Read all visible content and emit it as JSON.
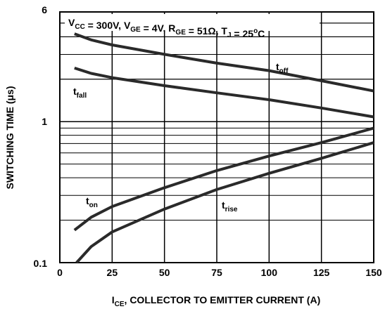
{
  "chart_data": {
    "type": "line",
    "title": "",
    "conditions": {
      "text": "V",
      "parts": [
        {
          "main": "V",
          "sub": "CC"
        },
        {
          "main": " = 300V, V",
          "sub": "GE"
        },
        {
          "main": " = 4V, R",
          "sub": "GE"
        },
        {
          "main": " = 51Ω, T",
          "sub": "J"
        },
        {
          "main": " = 25",
          "sup": "o",
          "after": "C"
        }
      ]
    },
    "xlabel": {
      "main": "I",
      "sub": "CE",
      "after": ", COLLECTOR TO EMITTER CURRENT (A)"
    },
    "ylabel": "SWITCHING TIME (μs)",
    "x_ticks": [
      "0",
      "25",
      "50",
      "75",
      "100",
      "125",
      "150"
    ],
    "y_tick_labels": [
      {
        "value": 0.1,
        "label": "0.1"
      },
      {
        "value": 1,
        "label": "1"
      },
      {
        "value": 6,
        "label": "6"
      }
    ],
    "xlim": [
      0,
      150
    ],
    "ylim": [
      0.1,
      6
    ],
    "y_scale": "log",
    "grid": true,
    "series": [
      {
        "name": "t_off",
        "label_main": "t",
        "label_sub": "off",
        "x": [
          7,
          15,
          25,
          50,
          75,
          100,
          125,
          150
        ],
        "y": [
          4.2,
          3.8,
          3.5,
          3.0,
          2.6,
          2.3,
          1.95,
          1.65
        ]
      },
      {
        "name": "t_fall",
        "label_main": "t",
        "label_sub": "fall",
        "x": [
          7,
          15,
          25,
          50,
          75,
          100,
          125,
          150
        ],
        "y": [
          2.4,
          2.2,
          2.05,
          1.8,
          1.6,
          1.43,
          1.25,
          1.08
        ]
      },
      {
        "name": "t_on",
        "label_main": "t",
        "label_sub": "on",
        "x": [
          7,
          15,
          25,
          50,
          75,
          100,
          125,
          150
        ],
        "y": [
          0.17,
          0.21,
          0.25,
          0.34,
          0.45,
          0.57,
          0.71,
          0.9
        ]
      },
      {
        "name": "t_rise",
        "label_main": "t",
        "label_sub": "rise",
        "x": [
          8,
          15,
          25,
          50,
          75,
          100,
          125,
          150
        ],
        "y": [
          0.1,
          0.13,
          0.165,
          0.24,
          0.33,
          0.43,
          0.55,
          0.71
        ]
      }
    ]
  }
}
